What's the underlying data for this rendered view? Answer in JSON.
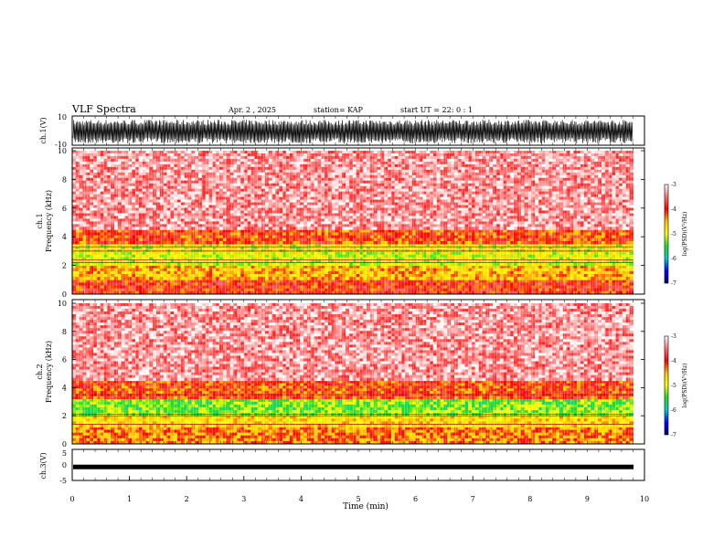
{
  "header": {
    "title": "VLF Spectra",
    "date": "Apr. 2 , 2025",
    "station": "station= KAP",
    "start": "start UT =  22: 0 : 1"
  },
  "chart_data": [
    {
      "type": "line",
      "ylabel": "ch.1(V)",
      "ylim": [
        -10,
        10
      ],
      "yticks": [
        "10",
        "-10"
      ],
      "xlim": [
        0,
        10
      ],
      "description_series": "dense black voltage waveform, ch.1"
    },
    {
      "type": "heatmap",
      "ylabel_line1": "ch.1",
      "ylabel_line2": "Frequency (kHz)",
      "ylim": [
        0,
        10
      ],
      "yticks": [
        "0",
        "2",
        "4",
        "6",
        "8",
        "10"
      ],
      "xlim": [
        0,
        9.8
      ],
      "colorbar": {
        "label": "log(PSD)(V²/Hz)",
        "range": [
          -7,
          -3
        ],
        "ticks": [
          "-3",
          "-4",
          "-5",
          "-6",
          "-7"
        ]
      },
      "bands": [
        {
          "freq_range": [
            0,
            1
          ],
          "level": -4.0
        },
        {
          "freq_range": [
            1,
            2
          ],
          "level": -4.5
        },
        {
          "freq_range": [
            2,
            3.5
          ],
          "level": -5.0
        },
        {
          "freq_range": [
            3.5,
            4.5
          ],
          "level": -4.1
        },
        {
          "freq_range": [
            4.5,
            10
          ],
          "level": -3.4
        }
      ],
      "lines_khz": [
        2.2,
        2.4,
        3.0,
        3.3
      ]
    },
    {
      "type": "heatmap",
      "ylabel_line1": "ch.2",
      "ylabel_line2": "Frequency (kHz)",
      "ylim": [
        0,
        10
      ],
      "yticks": [
        "0",
        "2",
        "4",
        "6",
        "8",
        "10"
      ],
      "xlim": [
        0,
        9.8
      ],
      "colorbar": {
        "label": "log(PSD)(V²/Hz)",
        "range": [
          -7,
          -3
        ],
        "ticks": [
          "-3",
          "-4",
          "-5",
          "-6",
          "-7"
        ]
      },
      "bands": [
        {
          "freq_range": [
            0,
            1.2
          ],
          "level": -4.3
        },
        {
          "freq_range": [
            1.2,
            2
          ],
          "level": -4.7
        },
        {
          "freq_range": [
            2,
            3.2
          ],
          "level": -5.3
        },
        {
          "freq_range": [
            3.2,
            4.5
          ],
          "level": -4.1
        },
        {
          "freq_range": [
            4.5,
            10
          ],
          "level": -3.4
        }
      ],
      "lines_khz": [
        1.4,
        2.0,
        2.1,
        3.5
      ]
    },
    {
      "type": "line",
      "ylabel": "ch.3(V)",
      "ylim": [
        -5,
        5
      ],
      "yticks": [
        "5",
        "0",
        "-5"
      ],
      "xlim": [
        0,
        10
      ],
      "level_v": -0.8
    }
  ],
  "xaxis": {
    "label": "Time (min)",
    "ticks": [
      "0",
      "1",
      "2",
      "3",
      "4",
      "5",
      "6",
      "7",
      "8",
      "9",
      "10"
    ]
  },
  "colors": {
    "hi": "#ff0000",
    "mid": "#ffcc00",
    "lo": "#22dd22"
  }
}
